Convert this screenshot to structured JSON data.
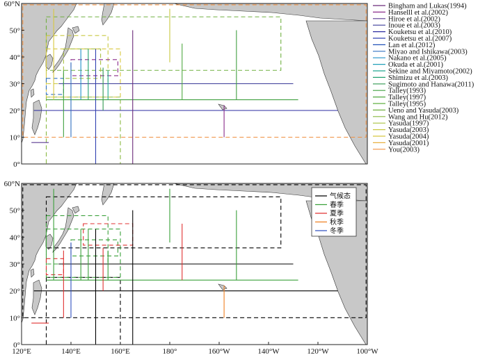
{
  "axes": {
    "lat_ticks": [
      "0°",
      "10°",
      "20°",
      "30°",
      "40°",
      "50°",
      "60°N"
    ],
    "lon_ticks": [
      "120°E",
      "140°E",
      "160°E",
      "180°",
      "160°W",
      "140°W",
      "120°W",
      "100°W"
    ],
    "lon_range": [
      120,
      260
    ],
    "lat_range": [
      0,
      60
    ]
  },
  "chart_data": [
    {
      "type": "map",
      "panel": "top",
      "legend": [
        {
          "label": "Bingham and Lukas(1994)",
          "color": "#6a2a7a",
          "style": "solid"
        },
        {
          "label": "Hanselll et al.(2002)",
          "color": "#8a2a8a",
          "style": "solid"
        },
        {
          "label": "Hiroe et al.(2002)",
          "color": "#5a3a90",
          "style": "solid"
        },
        {
          "label": "Inoue et al.(2003)",
          "color": "#3a3a98",
          "style": "solid"
        },
        {
          "label": "Kouketsu et al.(2010)",
          "color": "#2a2aa0",
          "style": "solid"
        },
        {
          "label": "Kouketsu et al.(2007)",
          "color": "#3040b0",
          "style": "solid"
        },
        {
          "label": "Lan et al.(2012)",
          "color": "#2050b8",
          "style": "solid"
        },
        {
          "label": "Miyao and Ishikawa(2003)",
          "color": "#3070c0",
          "style": "solid"
        },
        {
          "label": "Nakano et al.(2005)",
          "color": "#2090c8",
          "style": "solid"
        },
        {
          "label": "Okuda et al.(2001)",
          "color": "#20a0b8",
          "style": "solid"
        },
        {
          "label": "Sekine and Miyamoto(2002)",
          "color": "#20a890",
          "style": "solid"
        },
        {
          "label": "Shimizu et al.(2003)",
          "color": "#20a070",
          "style": "solid"
        },
        {
          "label": "Sugimoto and Hanawa(2011)",
          "color": "#309850",
          "style": "solid"
        },
        {
          "label": "Talley(1993)",
          "color": "#40a040",
          "style": "solid"
        },
        {
          "label": "Talley(1997)",
          "color": "#50a840",
          "style": "solid"
        },
        {
          "label": "Talley(1995)",
          "color": "#60b040",
          "style": "solid"
        },
        {
          "label": "Ueno and Yasuda(2003)",
          "color": "#70b040",
          "style": "solid"
        },
        {
          "label": "Wang and Hu(2012)",
          "color": "#88b840",
          "style": "solid"
        },
        {
          "label": "Yasuda(1997)",
          "color": "#a8c040",
          "style": "solid"
        },
        {
          "label": "Yasuda(2003)",
          "color": "#c8c840",
          "style": "solid"
        },
        {
          "label": "Yasuda(2004)",
          "color": "#d8c840",
          "style": "solid"
        },
        {
          "label": "Yasuda(2001)",
          "color": "#e8b040",
          "style": "solid"
        },
        {
          "label": "You(2003)",
          "color": "#f09040",
          "style": "solid"
        }
      ],
      "sections": [
        {
          "kind": "box",
          "lon": [
            120.5,
            259.5
          ],
          "lat": [
            10,
            59.5
          ],
          "color": "#f09040",
          "dash": true
        },
        {
          "kind": "box",
          "lon": [
            130,
            225
          ],
          "lat": [
            35,
            55
          ],
          "color": "#70b040",
          "dash": true
        },
        {
          "kind": "box",
          "lon": [
            130,
            160
          ],
          "lat": [
            0,
            25
          ],
          "color": "#88b840",
          "dash": true
        },
        {
          "kind": "box",
          "lon": [
            130,
            155
          ],
          "lat": [
            30,
            48
          ],
          "color": "#c8c840",
          "dash": true
        },
        {
          "kind": "box",
          "lon": [
            130,
            160
          ],
          "lat": [
            25,
            43
          ],
          "color": "#d8c840",
          "dash": true
        },
        {
          "kind": "box",
          "lon": [
            137,
            152
          ],
          "lat": [
            32,
            43
          ],
          "color": "#a8c040",
          "dash": true
        },
        {
          "kind": "box",
          "lon": [
            140,
            159
          ],
          "lat": [
            33,
            39
          ],
          "color": "#8a2a8a",
          "dash": true
        },
        {
          "kind": "box",
          "lon": [
            130,
            137
          ],
          "lat": [
            26,
            32
          ],
          "color": "#3070c0",
          "dash": true
        },
        {
          "kind": "line",
          "lon": [
            125,
            248
          ],
          "lat": [
            20,
            20
          ],
          "color": "#2a2aa0"
        },
        {
          "kind": "line",
          "lon": [
            135,
            230
          ],
          "lat": [
            30,
            30
          ],
          "color": "#3a3a98"
        },
        {
          "kind": "line",
          "lon": [
            130,
            232
          ],
          "lat": [
            24,
            24
          ],
          "color": "#40a040"
        },
        {
          "kind": "line",
          "lon": [
            165,
            165
          ],
          "lat": [
            0,
            50
          ],
          "color": "#6a2a7a"
        },
        {
          "kind": "line",
          "lon": [
            150,
            150
          ],
          "lat": [
            0,
            43
          ],
          "color": "#3040b0"
        },
        {
          "kind": "line",
          "lon": [
            180,
            180
          ],
          "lat": [
            38,
            58
          ],
          "color": "#c8c840"
        },
        {
          "kind": "line",
          "lon": [
            185,
            185
          ],
          "lat": [
            24,
            45
          ],
          "color": "#50a840"
        },
        {
          "kind": "line",
          "lon": [
            207,
            207
          ],
          "lat": [
            24,
            50
          ],
          "color": "#40a040"
        },
        {
          "kind": "line",
          "lon": [
            202,
            202
          ],
          "lat": [
            10,
            22
          ],
          "color": "#8a2a8a"
        },
        {
          "kind": "line",
          "lon": [
            137,
            137
          ],
          "lat": [
            10,
            35
          ],
          "color": "#40a040"
        },
        {
          "kind": "line",
          "lon": [
            140,
            140
          ],
          "lat": [
            10,
            38
          ],
          "color": "#3070c0"
        },
        {
          "kind": "line",
          "lon": [
            144,
            144
          ],
          "lat": [
            24,
            43
          ],
          "color": "#2090c8"
        },
        {
          "kind": "line",
          "lon": [
            147,
            147
          ],
          "lat": [
            24,
            43
          ],
          "color": "#20a070"
        },
        {
          "kind": "line",
          "lon": [
            153,
            153
          ],
          "lat": [
            20,
            36
          ],
          "color": "#309850"
        },
        {
          "kind": "line",
          "lon": [
            155,
            155
          ],
          "lat": [
            24,
            35
          ],
          "color": "#20a890"
        },
        {
          "kind": "line",
          "lon": [
            133,
            133
          ],
          "lat": [
            24,
            58
          ],
          "color": "#d8c840"
        },
        {
          "kind": "line",
          "lon": [
            124,
            131
          ],
          "lat": [
            8,
            8
          ],
          "color": "#5a3a90"
        }
      ]
    },
    {
      "type": "map",
      "panel": "bottom",
      "legend": [
        {
          "label": "气候态",
          "color": "#000000",
          "style": "solid"
        },
        {
          "label": "春季",
          "color": "#3aa03a",
          "style": "solid"
        },
        {
          "label": "夏季",
          "color": "#e03030",
          "style": "solid"
        },
        {
          "label": "秋季",
          "color": "#f08020",
          "style": "solid"
        },
        {
          "label": "冬季",
          "color": "#3050c0",
          "style": "solid"
        }
      ],
      "sections": [
        {
          "kind": "box",
          "lon": [
            120.5,
            259.5
          ],
          "lat": [
            10,
            59.5
          ],
          "color": "#000000",
          "dash": true
        },
        {
          "kind": "box",
          "lon": [
            130,
            225
          ],
          "lat": [
            36,
            55
          ],
          "color": "#000000",
          "dash": true
        },
        {
          "kind": "box",
          "lon": [
            130,
            160
          ],
          "lat": [
            0,
            25
          ],
          "color": "#000000",
          "dash": true
        },
        {
          "kind": "box",
          "lon": [
            130,
            155
          ],
          "lat": [
            30,
            48
          ],
          "color": "#3aa03a",
          "dash": true
        },
        {
          "kind": "box",
          "lon": [
            130,
            160
          ],
          "lat": [
            25,
            43
          ],
          "color": "#3aa03a",
          "dash": true
        },
        {
          "kind": "box",
          "lon": [
            140,
            159
          ],
          "lat": [
            33,
            39
          ],
          "color": "#3aa03a",
          "dash": true
        },
        {
          "kind": "box",
          "lon": [
            145,
            165
          ],
          "lat": [
            37,
            45
          ],
          "color": "#e03030",
          "dash": true
        },
        {
          "kind": "box",
          "lon": [
            130,
            137
          ],
          "lat": [
            26,
            32
          ],
          "color": "#e03030",
          "dash": true
        },
        {
          "kind": "line",
          "lon": [
            125,
            248
          ],
          "lat": [
            20,
            20
          ],
          "color": "#000000"
        },
        {
          "kind": "line",
          "lon": [
            135,
            230
          ],
          "lat": [
            30,
            30
          ],
          "color": "#000000"
        },
        {
          "kind": "line",
          "lon": [
            130,
            232
          ],
          "lat": [
            24,
            24
          ],
          "color": "#3aa03a"
        },
        {
          "kind": "line",
          "lon": [
            165,
            165
          ],
          "lat": [
            0,
            50
          ],
          "color": "#000000"
        },
        {
          "kind": "line",
          "lon": [
            150,
            150
          ],
          "lat": [
            0,
            43
          ],
          "color": "#000000"
        },
        {
          "kind": "line",
          "lon": [
            180,
            180
          ],
          "lat": [
            38,
            58
          ],
          "color": "#3aa03a"
        },
        {
          "kind": "line",
          "lon": [
            185,
            185
          ],
          "lat": [
            24,
            45
          ],
          "color": "#e03030"
        },
        {
          "kind": "line",
          "lon": [
            207,
            207
          ],
          "lat": [
            24,
            50
          ],
          "color": "#3aa03a"
        },
        {
          "kind": "line",
          "lon": [
            202,
            202
          ],
          "lat": [
            10,
            22
          ],
          "color": "#f08020"
        },
        {
          "kind": "line",
          "lon": [
            137,
            137
          ],
          "lat": [
            10,
            35
          ],
          "color": "#e03030"
        },
        {
          "kind": "line",
          "lon": [
            140,
            140
          ],
          "lat": [
            10,
            38
          ],
          "color": "#3050c0"
        },
        {
          "kind": "line",
          "lon": [
            144,
            144
          ],
          "lat": [
            24,
            43
          ],
          "color": "#3aa03a"
        },
        {
          "kind": "line",
          "lon": [
            147,
            147
          ],
          "lat": [
            24,
            43
          ],
          "color": "#3aa03a"
        },
        {
          "kind": "line",
          "lon": [
            153,
            153
          ],
          "lat": [
            20,
            36
          ],
          "color": "#e03030"
        },
        {
          "kind": "line",
          "lon": [
            155,
            155
          ],
          "lat": [
            24,
            35
          ],
          "color": "#3aa03a"
        },
        {
          "kind": "line",
          "lon": [
            133,
            133
          ],
          "lat": [
            24,
            58
          ],
          "color": "#3aa03a"
        },
        {
          "kind": "line",
          "lon": [
            124,
            131
          ],
          "lat": [
            8,
            8
          ],
          "color": "#e03030"
        }
      ]
    }
  ],
  "land_color": "#c8c8c8"
}
